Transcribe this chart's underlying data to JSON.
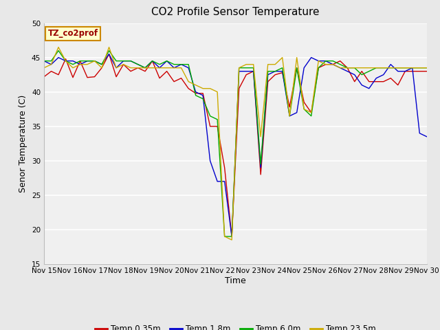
{
  "title": "CO2 Profile Sensor Temperature",
  "xlabel": "Time",
  "ylabel": "Senor Temperature (C)",
  "ylim": [
    15,
    50
  ],
  "xlim": [
    0,
    15
  ],
  "x_tick_labels": [
    "Nov 15",
    "Nov 16",
    "Nov 17",
    "Nov 18",
    "Nov 19",
    "Nov 20",
    "Nov 21",
    "Nov 22",
    "Nov 23",
    "Nov 24",
    "Nov 25",
    "Nov 26",
    "Nov 27",
    "Nov 28",
    "Nov 29",
    "Nov 30"
  ],
  "yticks": [
    15,
    20,
    25,
    30,
    35,
    40,
    45,
    50
  ],
  "legend_label": "TZ_co2prof",
  "series_labels": [
    "Temp 0.35m",
    "Temp 1.8m",
    "Temp 6.0m",
    "Temp 23.5m"
  ],
  "series_colors": [
    "#cc0000",
    "#0000cc",
    "#00aa00",
    "#ccaa00"
  ],
  "background_color": "#e8e8e8",
  "plot_bg_color": "#f0f0f0",
  "title_fontsize": 11,
  "axis_fontsize": 9,
  "tick_fontsize": 7.5,
  "series": {
    "red": [
      42.2,
      43.0,
      42.5,
      44.8,
      42.1,
      44.5,
      42.1,
      42.2,
      43.5,
      45.5,
      42.2,
      44.0,
      43.0,
      43.5,
      43.0,
      44.5,
      42.0,
      43.0,
      41.5,
      42.0,
      40.5,
      39.8,
      39.8,
      35.0,
      35.0,
      29.0,
      19.0,
      40.5,
      42.5,
      43.0,
      28.0,
      41.5,
      42.5,
      42.8,
      37.8,
      43.5,
      38.5,
      37.0,
      43.5,
      44.0,
      44.0,
      44.5,
      43.5,
      41.5,
      43.0,
      41.5,
      41.5,
      41.5,
      42.0,
      41.0,
      43.0,
      43.0,
      43.0,
      43.0
    ],
    "blue": [
      44.5,
      44.0,
      45.0,
      44.5,
      44.5,
      44.0,
      44.5,
      44.5,
      44.0,
      45.5,
      43.5,
      44.5,
      44.5,
      44.0,
      43.5,
      44.5,
      43.5,
      44.5,
      43.5,
      44.0,
      43.5,
      40.0,
      39.5,
      30.0,
      27.0,
      27.0,
      19.0,
      43.0,
      43.0,
      43.0,
      29.0,
      42.5,
      43.0,
      43.0,
      36.5,
      37.0,
      43.5,
      45.0,
      44.5,
      44.5,
      44.0,
      43.5,
      43.0,
      42.5,
      41.0,
      40.5,
      42.0,
      42.5,
      44.0,
      43.0,
      43.0,
      43.5,
      34.0,
      33.5
    ],
    "green": [
      44.5,
      44.5,
      46.0,
      44.5,
      44.0,
      44.5,
      44.5,
      44.5,
      44.0,
      46.0,
      44.5,
      44.5,
      44.5,
      44.0,
      43.5,
      44.5,
      44.0,
      44.5,
      44.0,
      44.0,
      44.0,
      39.5,
      39.0,
      36.5,
      36.0,
      19.0,
      19.0,
      43.5,
      43.5,
      43.5,
      29.5,
      43.0,
      43.0,
      43.5,
      36.5,
      43.5,
      37.5,
      36.5,
      43.5,
      44.5,
      44.5,
      44.0,
      43.5,
      43.5,
      42.5,
      43.0,
      43.5,
      43.5,
      43.5,
      43.5,
      43.5,
      43.5,
      43.5,
      43.5
    ],
    "orange": [
      43.5,
      44.0,
      46.5,
      44.5,
      43.5,
      44.0,
      44.0,
      44.5,
      43.5,
      46.5,
      43.5,
      44.0,
      43.5,
      43.5,
      43.5,
      43.5,
      43.5,
      43.5,
      43.5,
      43.5,
      41.5,
      41.0,
      40.5,
      40.5,
      40.0,
      19.0,
      18.5,
      43.5,
      44.0,
      44.0,
      33.5,
      44.0,
      44.0,
      45.0,
      36.5,
      45.0,
      37.5,
      37.0,
      44.5,
      44.0,
      44.0,
      43.5,
      43.5,
      43.5,
      43.5,
      43.5,
      43.5,
      43.5,
      43.5,
      43.5,
      43.5,
      43.5,
      43.5,
      43.5
    ]
  }
}
